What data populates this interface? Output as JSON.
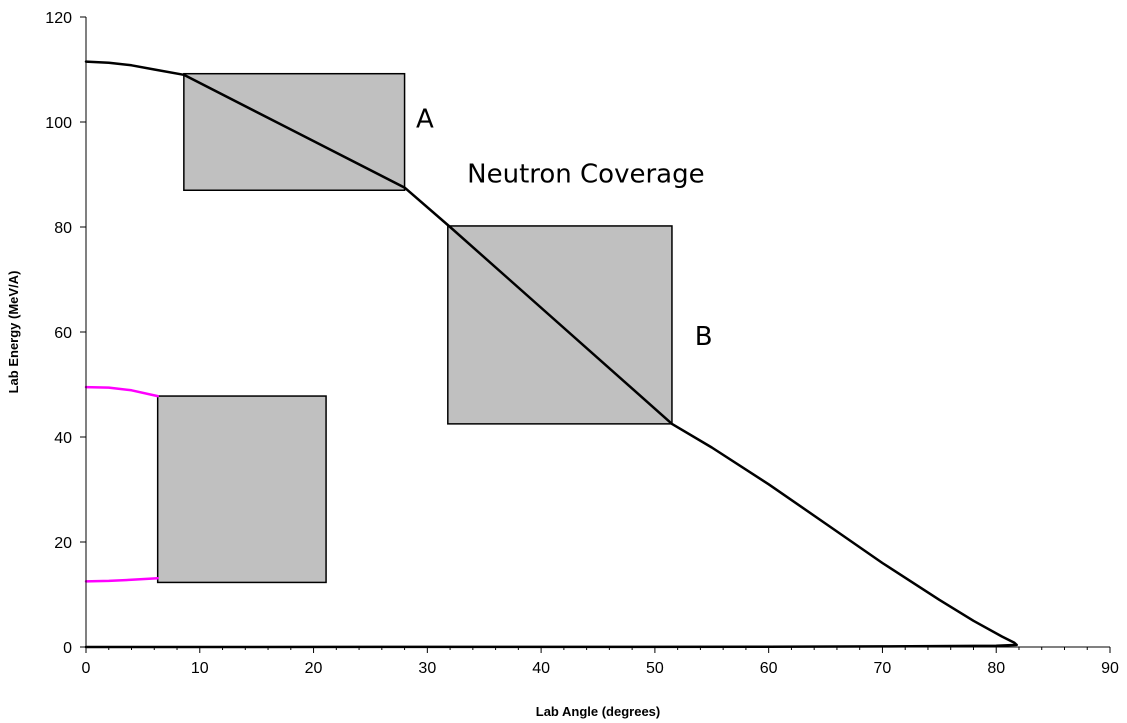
{
  "chart_data": {
    "type": "line",
    "xlabel": "Lab Angle (degrees)",
    "ylabel": "Lab Energy (MeV/A)",
    "xlim": [
      0,
      90
    ],
    "ylim": [
      0,
      120
    ],
    "x_ticks": [
      0,
      10,
      20,
      30,
      40,
      50,
      60,
      70,
      80,
      90
    ],
    "y_ticks": [
      0,
      20,
      40,
      60,
      80,
      100,
      120
    ],
    "grid": false,
    "legend": "none",
    "series": [
      {
        "color": "#000000",
        "points": [
          [
            0,
            111.5
          ],
          [
            2,
            111.3
          ],
          [
            4,
            110.8
          ],
          [
            6,
            110.0
          ],
          [
            8.6,
            109.0
          ],
          [
            28,
            87.5
          ],
          [
            32,
            80.0
          ],
          [
            51.5,
            42.5
          ],
          [
            55,
            38.0
          ],
          [
            60,
            31.0
          ],
          [
            65,
            23.5
          ],
          [
            70,
            16.0
          ],
          [
            75,
            9.0
          ],
          [
            78,
            5.0
          ],
          [
            80.5,
            2.0
          ],
          [
            81.6,
            0.8
          ],
          [
            81.8,
            0.4
          ],
          [
            80,
            0.25
          ],
          [
            70,
            0.12
          ],
          [
            60,
            0.06
          ],
          [
            40,
            0.02
          ],
          [
            0,
            0.0
          ]
        ]
      },
      {
        "color": "#ff00ff",
        "points": [
          [
            0,
            49.5
          ],
          [
            2,
            49.4
          ],
          [
            4,
            48.9
          ],
          [
            6.3,
            47.8
          ]
        ]
      },
      {
        "color": "#ff00ff",
        "points": [
          [
            0,
            12.5
          ],
          [
            2,
            12.6
          ],
          [
            4,
            12.8
          ],
          [
            6.3,
            13.1
          ]
        ]
      }
    ],
    "regions": [
      {
        "x": [
          8.6,
          28.0
        ],
        "y": [
          87.0,
          109.2
        ],
        "fill": "#c0c0c0"
      },
      {
        "x": [
          31.8,
          51.5
        ],
        "y": [
          42.5,
          80.2
        ],
        "fill": "#c0c0c0"
      },
      {
        "x": [
          6.3,
          21.1
        ],
        "y": [
          12.3,
          47.8
        ],
        "fill": "#c0c0c0"
      }
    ],
    "annotations": [
      {
        "text": "A",
        "x": 29.0,
        "y": 99.0
      },
      {
        "text": "Neutron Coverage",
        "x": 33.5,
        "y": 88.5
      },
      {
        "text": "B",
        "x": 53.5,
        "y": 57.5
      }
    ]
  }
}
